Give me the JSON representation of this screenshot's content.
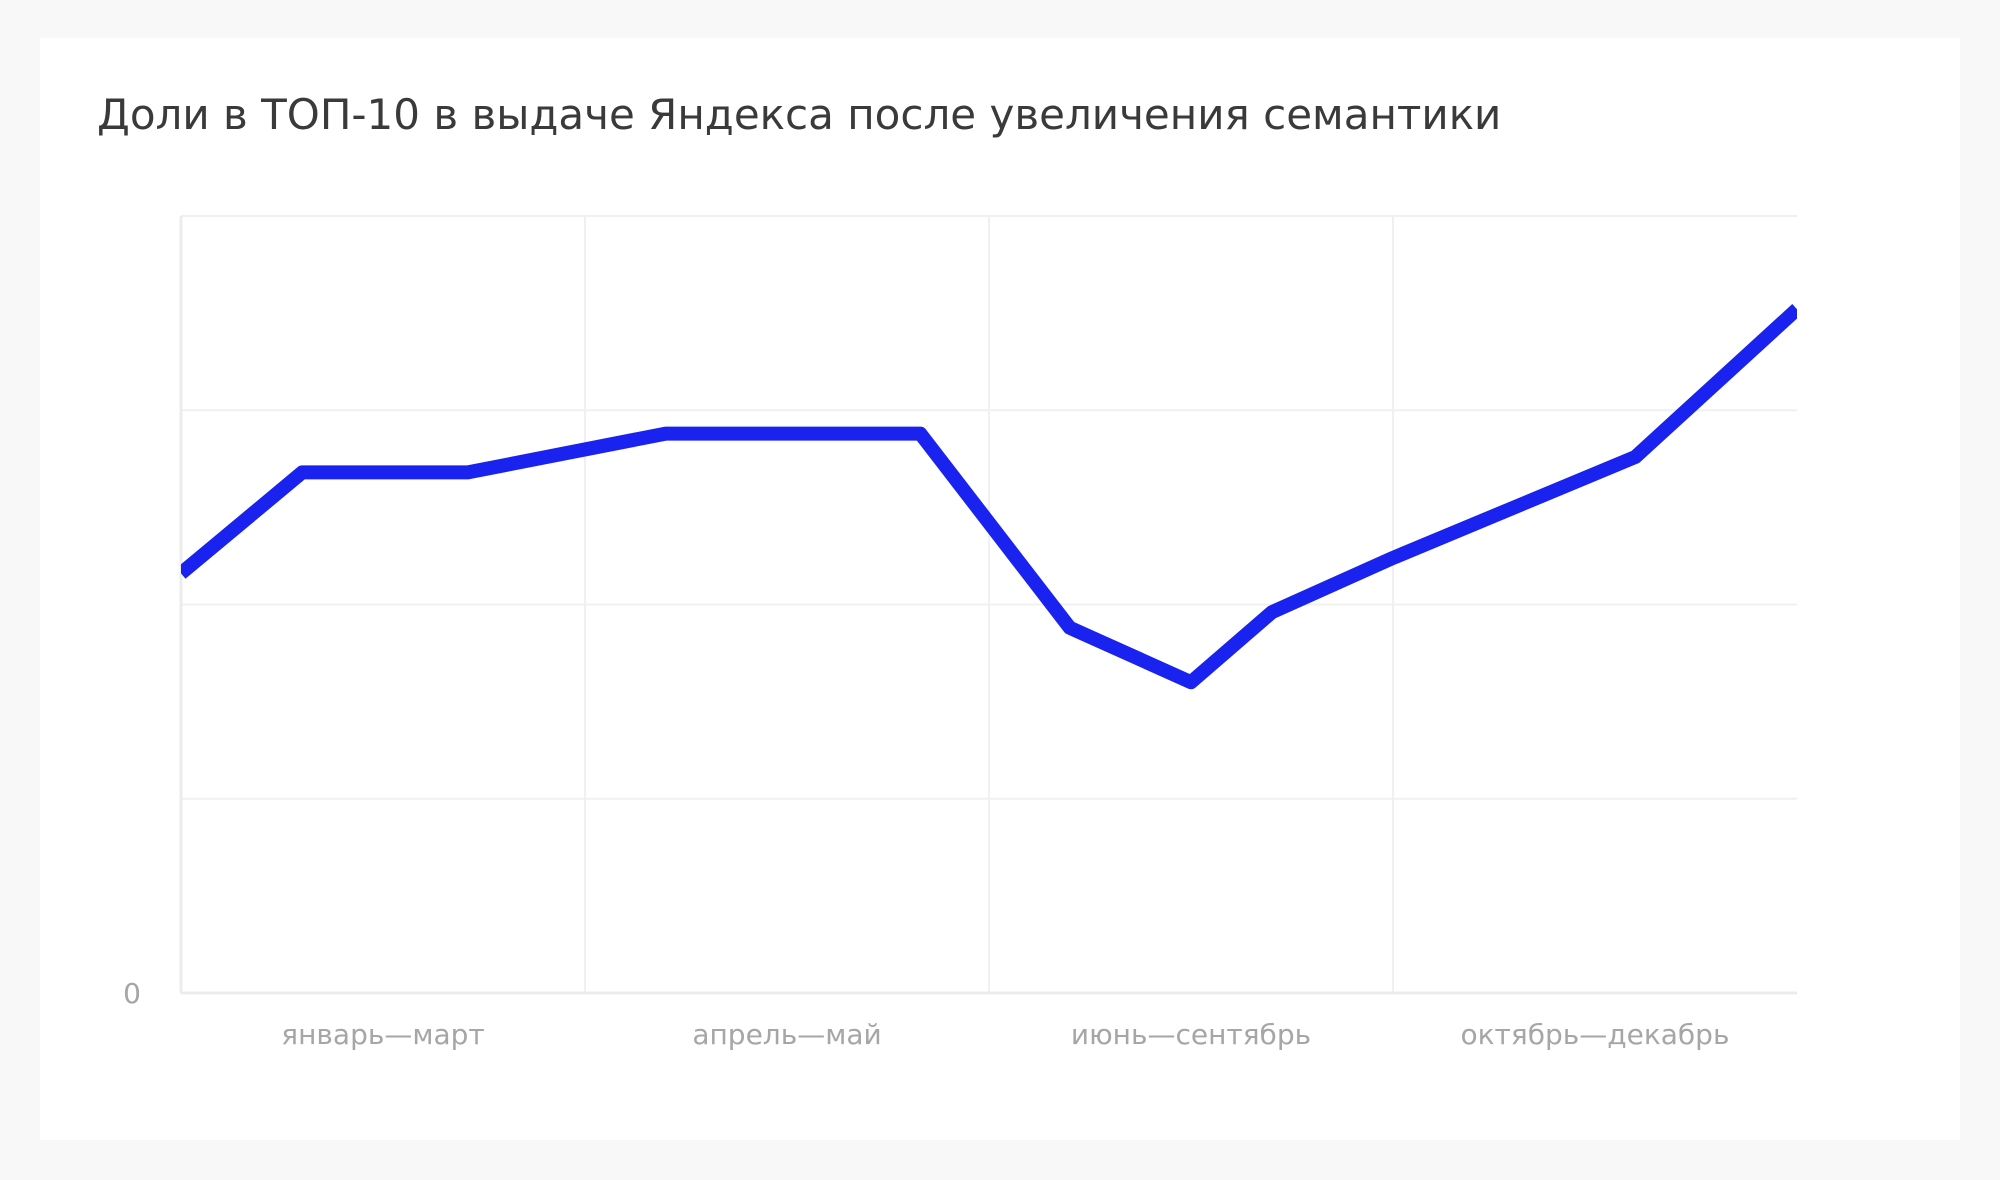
{
  "chart_data": {
    "type": "line",
    "title": "Доли в ТОП-10 в выдаче Яндекса после увеличения семантики",
    "xlabel": "",
    "ylabel": "",
    "categories": [
      "январь—март",
      "апрель—май",
      "июнь—сентябрь",
      "октябрь—декабрь"
    ],
    "y_tick_labels": [
      {
        "value": 0,
        "label": "0"
      }
    ],
    "ylim": [
      0,
      100
    ],
    "xlim": [
      0,
      4
    ],
    "grid": true,
    "legend": "none",
    "series": [
      {
        "color": "#1a22f0",
        "points": [
          {
            "x": 0.0,
            "y": 54
          },
          {
            "x": 0.3,
            "y": 67
          },
          {
            "x": 0.71,
            "y": 67
          },
          {
            "x": 1.2,
            "y": 72
          },
          {
            "x": 1.83,
            "y": 72
          },
          {
            "x": 2.2,
            "y": 47
          },
          {
            "x": 2.5,
            "y": 40
          },
          {
            "x": 2.7,
            "y": 49
          },
          {
            "x": 3.0,
            "y": 56
          },
          {
            "x": 3.6,
            "y": 69
          },
          {
            "x": 4.0,
            "y": 88
          }
        ]
      }
    ]
  }
}
